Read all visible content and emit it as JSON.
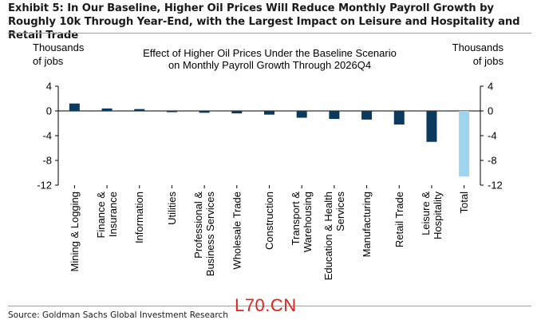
{
  "exhibit_title": "Exhibit 5: In Our Baseline, Higher Oil Prices Will Reduce Monthly Payroll Growth by Roughly 10k Through Year-End, with the Largest Impact on Leisure and Hospitality and Retail Trade",
  "source": "Source: Goldman Sachs Global Investment Research",
  "watermark": "L70.CN",
  "colors": {
    "bar": "#0b3a5e",
    "total_bar": "#9fd4ee",
    "axis": "#000000",
    "rule": "#9aa3ad"
  },
  "chart_data": {
    "type": "bar",
    "title_lines": [
      "Effect of Higher Oil Prices Under the Baseline Scenario",
      "on Monthly Payroll Growth Through 2026Q4"
    ],
    "ylabel_left": [
      "Thousands",
      "of jobs"
    ],
    "ylabel_right": [
      "Thousands",
      "of jobs"
    ],
    "ylim": [
      -12,
      4
    ],
    "yticks": [
      4,
      0,
      -4,
      -8,
      -12
    ],
    "grid": false,
    "categories": [
      [
        "Mining & Logging"
      ],
      [
        "Finance &",
        "Insurance"
      ],
      [
        "Information"
      ],
      [
        "Utilities"
      ],
      [
        "Professional &",
        "Business Services"
      ],
      [
        "Wholesale Trade"
      ],
      [
        "Construction"
      ],
      [
        "Transport &",
        "Warehousing"
      ],
      [
        "Education & Health",
        "Services"
      ],
      [
        "Manufacturing"
      ],
      [
        "Retail Trade"
      ],
      [
        "Leisure &",
        "Hospitality"
      ],
      [
        "Total"
      ]
    ],
    "values": [
      1.2,
      0.4,
      0.3,
      -0.2,
      -0.3,
      -0.4,
      -0.6,
      -1.1,
      -1.3,
      -1.4,
      -2.2,
      -5.0,
      -10.6
    ]
  }
}
